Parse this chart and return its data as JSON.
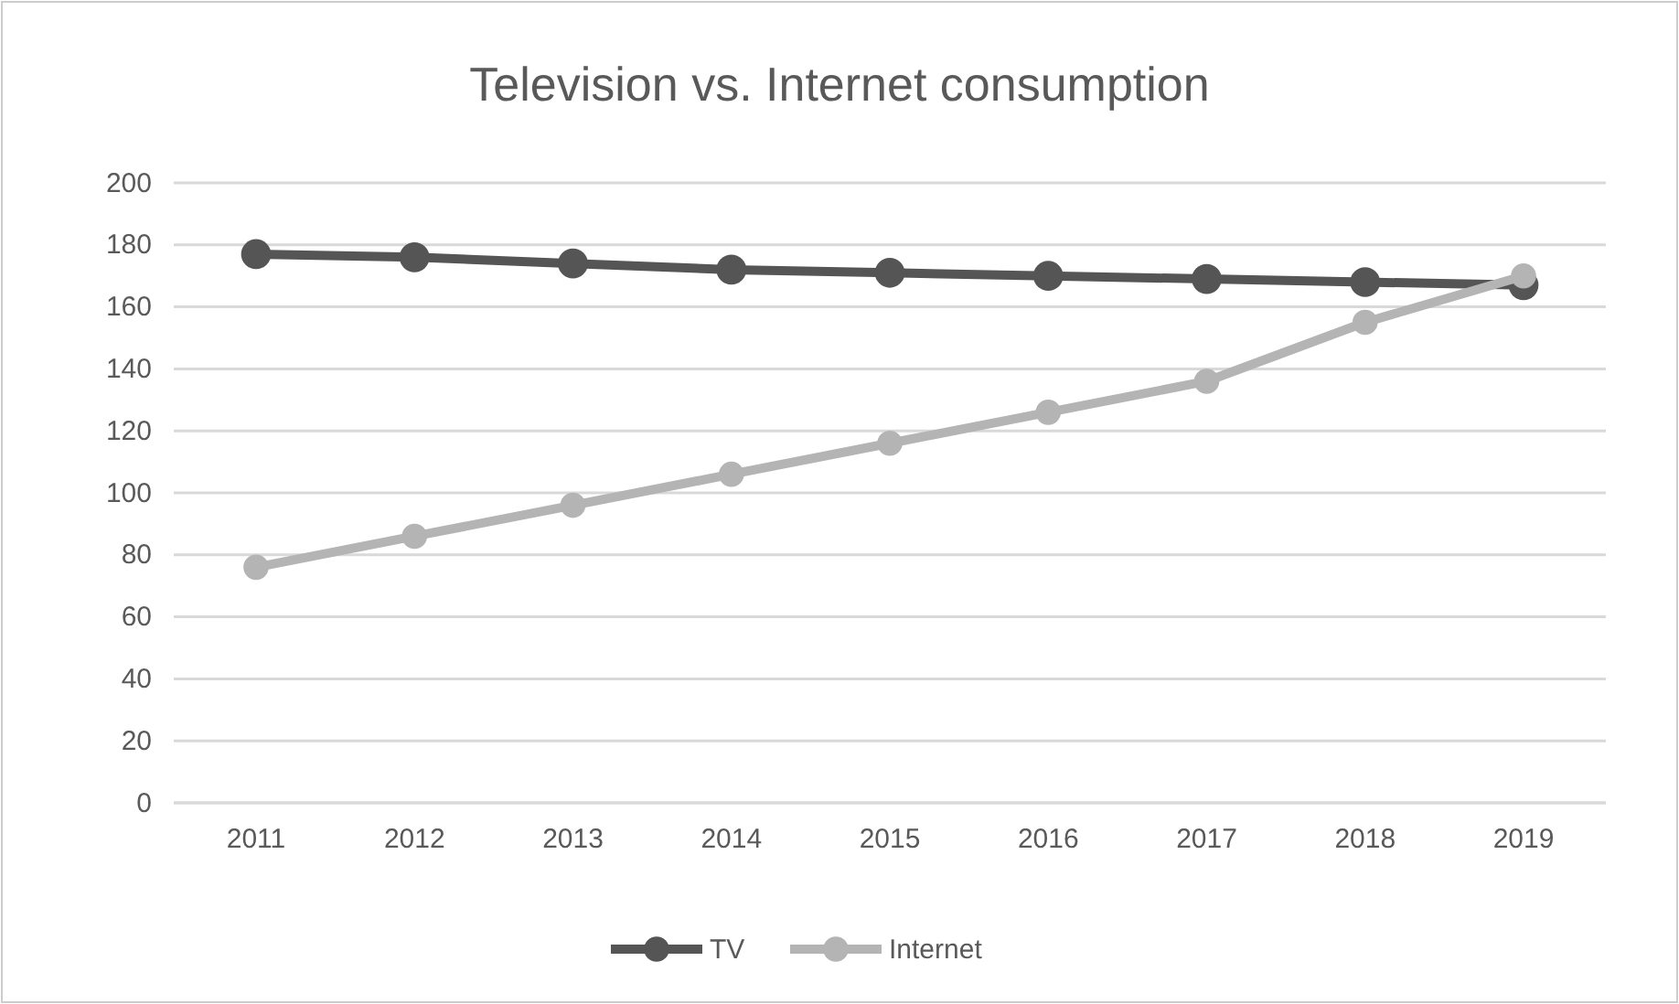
{
  "chart_data": {
    "type": "line",
    "title": "Television vs. Internet consumption",
    "categories": [
      "2011",
      "2012",
      "2013",
      "2014",
      "2015",
      "2016",
      "2017",
      "2018",
      "2019"
    ],
    "series": [
      {
        "name": "TV",
        "color": "#555555",
        "values": [
          177,
          176,
          174,
          172,
          171,
          170,
          169,
          168,
          167
        ]
      },
      {
        "name": "Internet",
        "color": "#b4b4b4",
        "values": [
          76,
          86,
          96,
          106,
          116,
          126,
          136,
          155,
          170
        ]
      }
    ],
    "ylim": [
      0,
      200
    ],
    "yticks": [
      0,
      20,
      40,
      60,
      80,
      100,
      120,
      140,
      160,
      180,
      200
    ],
    "grid": "y",
    "legend": "bottom",
    "marker": "circle",
    "line_style": "solid"
  }
}
